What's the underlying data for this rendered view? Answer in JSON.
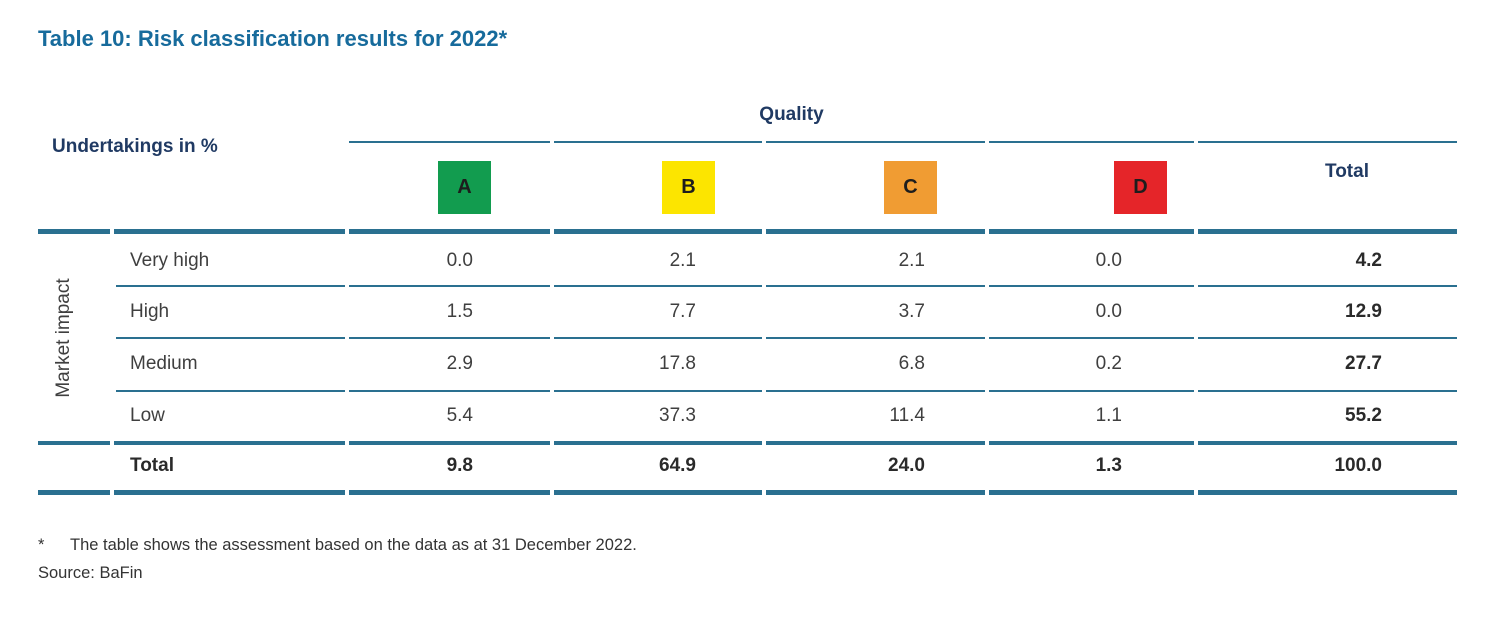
{
  "title": "Table 10: Risk classification results for 2022*",
  "table": {
    "corner_label": "Undertakings in %",
    "quality_label": "Quality",
    "total_label": "Total",
    "row_axis_label": "Market impact",
    "categories": [
      {
        "label": "A",
        "color": "#129c4f"
      },
      {
        "label": "B",
        "color": "#fce500"
      },
      {
        "label": "C",
        "color": "#f09c33"
      },
      {
        "label": "D",
        "color": "#e52529"
      }
    ],
    "rows": [
      {
        "label": "Very high",
        "values": [
          "0.0",
          "2.1",
          "2.1",
          "0.0"
        ],
        "total": "4.2"
      },
      {
        "label": "High",
        "values": [
          "1.5",
          "7.7",
          "3.7",
          "0.0"
        ],
        "total": "12.9"
      },
      {
        "label": "Medium",
        "values": [
          "2.9",
          "17.8",
          "6.8",
          "0.2"
        ],
        "total": "27.7"
      },
      {
        "label": "Low",
        "values": [
          "5.4",
          "37.3",
          "11.4",
          "1.1"
        ],
        "total": "55.2"
      }
    ],
    "total_row": {
      "label": "Total",
      "values": [
        "9.8",
        "64.9",
        "24.0",
        "1.3"
      ],
      "total": "100.0"
    }
  },
  "footnote": {
    "marker": "*",
    "text": "The table shows the assessment based on the data as at 31 December 2022."
  },
  "source": "Source: BaFin",
  "colors": {
    "title": "#176b9c",
    "header_text": "#203a63",
    "rule": "#2a7090",
    "body_text": "#3f3f3f"
  }
}
